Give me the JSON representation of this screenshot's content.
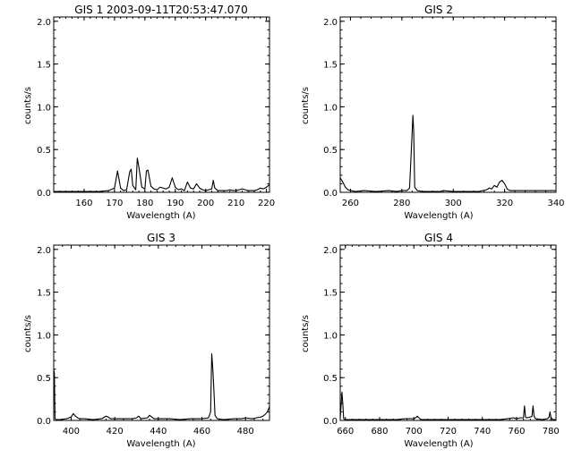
{
  "chart_data": [
    {
      "type": "line",
      "title": "GIS 1 2003-09-11T20:53:47.070",
      "xlabel": "Wavelength (A)",
      "ylabel": "counts/s",
      "xlim": [
        150,
        221
      ],
      "ylim": [
        0,
        2.05
      ],
      "xticks": [
        160,
        170,
        180,
        190,
        200,
        210,
        220
      ],
      "yticks": [
        0.0,
        0.5,
        1.0,
        1.5,
        2.0
      ],
      "grid": false,
      "series": [
        {
          "x": [
            150,
            160,
            165,
            168,
            170,
            171,
            172,
            173,
            174,
            175,
            175.5,
            176,
            177,
            177.5,
            178,
            179,
            180,
            180.5,
            181,
            182,
            183,
            184,
            185,
            186,
            187,
            188,
            189,
            190,
            191,
            192,
            193,
            194,
            195,
            196,
            197,
            198,
            199,
            200,
            201,
            202,
            202.5,
            203,
            204,
            205,
            206,
            207,
            208,
            209,
            210,
            211,
            212,
            213,
            214,
            215,
            216,
            217,
            218,
            219,
            220,
            221
          ],
          "y": [
            0.01,
            0.01,
            0.01,
            0.02,
            0.05,
            0.25,
            0.05,
            0.02,
            0.03,
            0.24,
            0.27,
            0.08,
            0.03,
            0.4,
            0.3,
            0.06,
            0.04,
            0.25,
            0.26,
            0.07,
            0.04,
            0.03,
            0.06,
            0.05,
            0.04,
            0.06,
            0.17,
            0.06,
            0.03,
            0.04,
            0.02,
            0.12,
            0.05,
            0.04,
            0.1,
            0.05,
            0.03,
            0.02,
            0.03,
            0.04,
            0.14,
            0.05,
            0.02,
            0.02,
            0.02,
            0.02,
            0.03,
            0.02,
            0.02,
            0.03,
            0.04,
            0.03,
            0.02,
            0.02,
            0.02,
            0.03,
            0.05,
            0.04,
            0.06,
            0.09
          ]
        }
      ]
    },
    {
      "type": "line",
      "title": "GIS 2",
      "xlabel": "Wavelength (A)",
      "ylabel": "counts/s",
      "xlim": [
        256,
        340
      ],
      "ylim": [
        0,
        2.05
      ],
      "xticks": [
        260,
        280,
        300,
        320,
        340
      ],
      "yticks": [
        0.0,
        0.5,
        1.0,
        1.5,
        2.0
      ],
      "grid": false,
      "series": [
        {
          "x": [
            256,
            257,
            258,
            259,
            260,
            262,
            265,
            270,
            275,
            278,
            280,
            282,
            283,
            284,
            284.3,
            284.6,
            285,
            286,
            288,
            290,
            295,
            296,
            300,
            305,
            310,
            313,
            314,
            315,
            316,
            317,
            318,
            319,
            320,
            321,
            322,
            325,
            330,
            335,
            340
          ],
          "y": [
            0.17,
            0.12,
            0.06,
            0.03,
            0.02,
            0.01,
            0.02,
            0.01,
            0.02,
            0.01,
            0.02,
            0.02,
            0.05,
            0.7,
            0.9,
            0.72,
            0.06,
            0.02,
            0.01,
            0.01,
            0.01,
            0.02,
            0.01,
            0.01,
            0.01,
            0.03,
            0.05,
            0.04,
            0.08,
            0.06,
            0.12,
            0.14,
            0.1,
            0.04,
            0.02,
            0.02,
            0.02,
            0.02,
            0.02
          ]
        }
      ]
    },
    {
      "type": "line",
      "title": "GIS 3",
      "xlabel": "Wavelength (A)",
      "ylabel": "counts/s",
      "xlim": [
        392,
        491
      ],
      "ylim": [
        0,
        2.05
      ],
      "xticks": [
        400,
        420,
        440,
        460,
        480
      ],
      "yticks": [
        0.0,
        0.5,
        1.0,
        1.5,
        2.0
      ],
      "grid": false,
      "series": [
        {
          "x": [
            392,
            392.3,
            392.6,
            393,
            395,
            398,
            400,
            401,
            402,
            403,
            404,
            406,
            410,
            414,
            416,
            417,
            418,
            420,
            425,
            428,
            430,
            431,
            432,
            435,
            436,
            437,
            438,
            440,
            445,
            450,
            455,
            460,
            463,
            464,
            464.5,
            465,
            465.5,
            466,
            467,
            470,
            475,
            478,
            480,
            483,
            485,
            487,
            488,
            489,
            490,
            491
          ],
          "y": [
            0.6,
            0.55,
            0.02,
            0.01,
            0.01,
            0.02,
            0.04,
            0.08,
            0.05,
            0.03,
            0.02,
            0.02,
            0.01,
            0.02,
            0.05,
            0.04,
            0.02,
            0.02,
            0.02,
            0.02,
            0.03,
            0.05,
            0.02,
            0.03,
            0.06,
            0.04,
            0.02,
            0.02,
            0.02,
            0.01,
            0.02,
            0.02,
            0.03,
            0.1,
            0.78,
            0.6,
            0.35,
            0.06,
            0.02,
            0.01,
            0.02,
            0.02,
            0.03,
            0.02,
            0.03,
            0.04,
            0.05,
            0.07,
            0.1,
            0.16
          ]
        }
      ]
    },
    {
      "type": "line",
      "title": "GIS 4",
      "xlabel": "Wavelength (A)",
      "ylabel": "counts/s",
      "xlim": [
        657,
        783
      ],
      "ylim": [
        0,
        2.05
      ],
      "xticks": [
        660,
        680,
        700,
        720,
        740,
        760,
        780
      ],
      "yticks": [
        0.0,
        0.5,
        1.0,
        1.5,
        2.0
      ],
      "grid": false,
      "series": [
        {
          "x": [
            657,
            658,
            658.5,
            659,
            660,
            662,
            665,
            670,
            680,
            690,
            695,
            700,
            701,
            702,
            703,
            704,
            705,
            710,
            720,
            730,
            740,
            750,
            755,
            758,
            760,
            762,
            764,
            764.6,
            765.2,
            766,
            768,
            769,
            769.6,
            770.2,
            771,
            775,
            778,
            779,
            779.5,
            780,
            781,
            783
          ],
          "y": [
            0.02,
            0.33,
            0.2,
            0.02,
            0.01,
            0.01,
            0.01,
            0.01,
            0.01,
            0.01,
            0.02,
            0.02,
            0.03,
            0.05,
            0.03,
            0.01,
            0.01,
            0.01,
            0.01,
            0.01,
            0.01,
            0.01,
            0.02,
            0.03,
            0.02,
            0.03,
            0.03,
            0.17,
            0.04,
            0.03,
            0.04,
            0.05,
            0.17,
            0.05,
            0.02,
            0.01,
            0.02,
            0.04,
            0.1,
            0.04,
            0.01,
            0.01
          ]
        }
      ]
    }
  ]
}
